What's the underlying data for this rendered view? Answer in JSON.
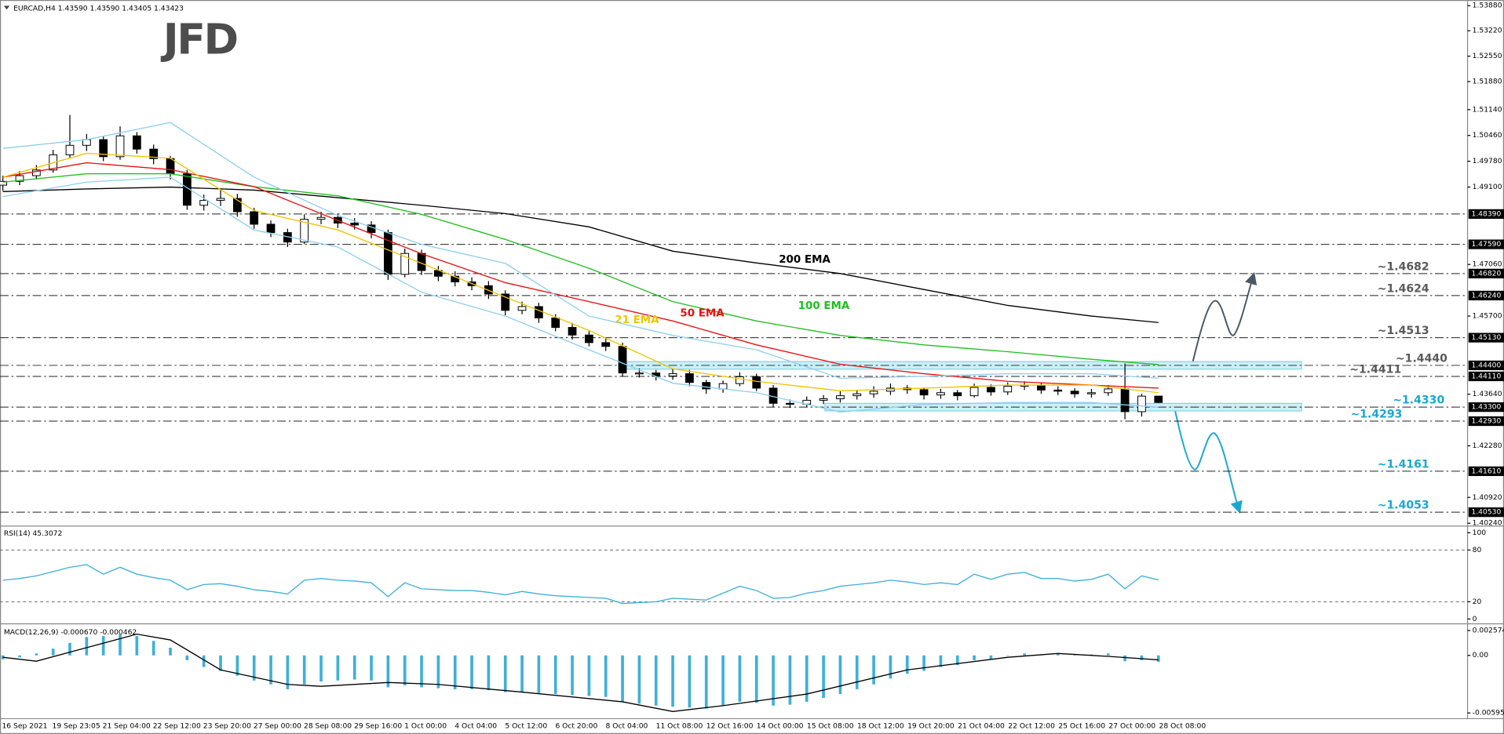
{
  "chart_data": [
    {
      "type": "candlestick",
      "title": "EURCAD,H4  1.43590 1.43590 1.43405 1.43423",
      "logo": "JFD",
      "up_color": "#ffffff",
      "down_color": "#000000",
      "open": [
        1.4915,
        1.4925,
        1.494,
        1.4955,
        1.4995,
        1.502,
        1.5035,
        1.499,
        1.5045,
        1.501,
        1.4985,
        1.4945,
        1.4862,
        1.4875,
        1.488,
        1.4845,
        1.4812,
        1.479,
        1.4765,
        1.4825,
        1.483,
        1.4815,
        1.481,
        1.479,
        1.468,
        1.4735,
        1.469,
        1.4675,
        1.466,
        1.465,
        1.4628,
        1.4585,
        1.4595,
        1.4565,
        1.454,
        1.452,
        1.45,
        1.449,
        1.442,
        1.442,
        1.4412,
        1.4418,
        1.4395,
        1.4378,
        1.4392,
        1.441,
        1.438,
        1.434,
        1.4338,
        1.4348,
        1.4352,
        1.436,
        1.4365,
        1.4372,
        1.438,
        1.4376,
        1.4362,
        1.4368,
        1.436,
        1.4382,
        1.437,
        1.4385,
        1.4388,
        1.4375,
        1.4372,
        1.4365,
        1.4368,
        1.4378,
        1.4318,
        1.4359
      ],
      "high": [
        1.494,
        1.4952,
        1.4968,
        1.5008,
        1.51,
        1.505,
        1.5045,
        1.507,
        1.5055,
        1.5022,
        1.4992,
        1.4955,
        1.489,
        1.4905,
        1.4892,
        1.4855,
        1.4822,
        1.48,
        1.4838,
        1.4845,
        1.484,
        1.4828,
        1.482,
        1.4798,
        1.4748,
        1.4745,
        1.4702,
        1.4688,
        1.4672,
        1.4662,
        1.4638,
        1.4608,
        1.4605,
        1.4575,
        1.4552,
        1.453,
        1.4512,
        1.45,
        1.4432,
        1.4428,
        1.443,
        1.4428,
        1.4402,
        1.44,
        1.4422,
        1.4418,
        1.4388,
        1.435,
        1.4358,
        1.4362,
        1.4372,
        1.4375,
        1.4385,
        1.4392,
        1.4388,
        1.4382,
        1.4378,
        1.4375,
        1.4392,
        1.439,
        1.4395,
        1.4398,
        1.4395,
        1.4385,
        1.438,
        1.4378,
        1.4388,
        1.4445,
        1.4365,
        1.4359
      ],
      "low": [
        1.49,
        1.4915,
        1.493,
        1.4948,
        1.4985,
        1.5005,
        1.4978,
        1.4982,
        1.4998,
        1.497,
        1.493,
        1.485,
        1.4848,
        1.486,
        1.4832,
        1.48,
        1.4778,
        1.4752,
        1.476,
        1.4812,
        1.4802,
        1.4798,
        1.4775,
        1.4665,
        1.4672,
        1.4678,
        1.4662,
        1.4648,
        1.4638,
        1.4615,
        1.4572,
        1.4575,
        1.4552,
        1.453,
        1.4508,
        1.449,
        1.4478,
        1.441,
        1.4408,
        1.44,
        1.4402,
        1.4385,
        1.4365,
        1.4368,
        1.4385,
        1.4372,
        1.433,
        1.4328,
        1.433,
        1.4338,
        1.4342,
        1.435,
        1.4355,
        1.4362,
        1.4365,
        1.435,
        1.4352,
        1.4348,
        1.4355,
        1.436,
        1.4362,
        1.4375,
        1.4365,
        1.4362,
        1.4355,
        1.4355,
        1.436,
        1.4298,
        1.4305,
        1.43405
      ],
      "close": [
        1.4925,
        1.494,
        1.4955,
        1.4995,
        1.502,
        1.5035,
        1.499,
        1.5045,
        1.501,
        1.4985,
        1.4945,
        1.4862,
        1.4875,
        1.488,
        1.4845,
        1.4812,
        1.479,
        1.4765,
        1.4825,
        1.483,
        1.4815,
        1.481,
        1.479,
        1.468,
        1.4735,
        1.469,
        1.4675,
        1.466,
        1.465,
        1.4628,
        1.4585,
        1.4595,
        1.4565,
        1.454,
        1.452,
        1.45,
        1.449,
        1.442,
        1.442,
        1.4412,
        1.4418,
        1.4395,
        1.4378,
        1.4392,
        1.441,
        1.438,
        1.434,
        1.4338,
        1.4348,
        1.4352,
        1.436,
        1.4365,
        1.4372,
        1.438,
        1.4376,
        1.4362,
        1.4368,
        1.436,
        1.4382,
        1.437,
        1.4385,
        1.4388,
        1.4375,
        1.4372,
        1.4365,
        1.4368,
        1.4378,
        1.4318,
        1.4359,
        1.43423
      ],
      "series": [
        {
          "name": "200 EMA",
          "color": "#000000",
          "x": [
            0,
            5,
            10,
            15,
            20,
            25,
            30,
            35,
            40,
            45,
            50,
            55,
            60,
            65,
            69
          ],
          "values": [
            1.4898,
            1.4905,
            1.491,
            1.4902,
            1.4882,
            1.4862,
            1.484,
            1.4805,
            1.4741,
            1.471,
            1.4682,
            1.464,
            1.4598,
            1.457,
            1.4553
          ]
        },
        {
          "name": "100 EMA",
          "color": "#1fbf1f",
          "x": [
            0,
            5,
            10,
            15,
            20,
            25,
            30,
            35,
            40,
            45,
            50,
            55,
            60,
            65,
            69
          ],
          "values": [
            1.4923,
            1.4945,
            1.4945,
            1.4911,
            1.4887,
            1.4838,
            1.4772,
            1.4696,
            1.4608,
            1.4557,
            1.4519,
            1.4494,
            1.4476,
            1.4456,
            1.4442
          ]
        },
        {
          "name": "50 EMA",
          "color": "#e81010",
          "x": [
            0,
            5,
            10,
            15,
            20,
            25,
            30,
            35,
            40,
            45,
            50,
            55,
            60,
            65,
            69
          ],
          "values": [
            1.4936,
            1.4974,
            1.4956,
            1.4911,
            1.4822,
            1.4734,
            1.4658,
            1.4608,
            1.4557,
            1.4494,
            1.4443,
            1.4418,
            1.4398,
            1.4388,
            1.438
          ]
        },
        {
          "name": "21 EMA",
          "color": "#f0c400",
          "x": [
            0,
            5,
            10,
            15,
            20,
            25,
            30,
            35,
            40,
            45,
            50,
            55,
            60,
            65,
            69
          ],
          "values": [
            1.4936,
            1.4999,
            1.4986,
            1.4848,
            1.4797,
            1.4709,
            1.462,
            1.4532,
            1.4431,
            1.4398,
            1.4373,
            1.438,
            1.4388,
            1.4388,
            1.4368
          ]
        },
        {
          "color": "#8fcfef",
          "x": [
            0,
            5,
            10,
            15,
            20,
            25,
            30,
            35,
            40,
            45,
            50,
            55,
            60,
            65,
            69
          ],
          "values": [
            1.5012,
            1.5035,
            1.508,
            1.4936,
            1.4835,
            1.4759,
            1.4709,
            1.457,
            1.4519,
            1.4481,
            1.4406,
            1.4411,
            1.4418,
            1.4418,
            1.4406
          ]
        },
        {
          "color": "#8fcfef",
          "x": [
            0,
            5,
            10,
            15,
            20,
            25,
            30,
            35,
            40,
            45,
            50,
            55,
            60,
            65,
            69
          ],
          "values": [
            1.4885,
            1.4923,
            1.4936,
            1.4797,
            1.4752,
            1.4633,
            1.457,
            1.4481,
            1.4393,
            1.4368,
            1.4317,
            1.4337,
            1.4342,
            1.4342,
            1.433
          ]
        }
      ],
      "ylim": [
        1.4019,
        1.5403
      ],
      "yticks": [
        {
          "value": 1.5388,
          "label": "1.53880"
        },
        {
          "value": 1.5322,
          "label": "1.53220"
        },
        {
          "value": 1.5255,
          "label": "1.52550"
        },
        {
          "value": 1.5188,
          "label": "1.51880"
        },
        {
          "value": 1.5114,
          "label": "1.51140"
        },
        {
          "value": 1.5046,
          "label": "1.50460"
        },
        {
          "value": 1.4978,
          "label": "1.49780"
        },
        {
          "value": 1.491,
          "label": "1.49100"
        },
        {
          "value": 1.4706,
          "label": "1.47060"
        },
        {
          "value": 1.457,
          "label": "1.45700"
        },
        {
          "value": 1.4364,
          "label": "1.43640"
        },
        {
          "value": 1.4228,
          "label": "1.42280"
        },
        {
          "value": 1.4092,
          "label": "1.40920"
        },
        {
          "value": 1.4024,
          "label": "1.40240"
        }
      ],
      "levels": [
        {
          "value": 1.4839,
          "label": "1.48390"
        },
        {
          "value": 1.4759,
          "label": "1.47590"
        },
        {
          "value": 1.4682,
          "label": "1.46820",
          "note": "~1.4682",
          "note_color": "#5a5a5a"
        },
        {
          "value": 1.4624,
          "label": "1.46240",
          "note": "~1.4624",
          "note_color": "#5a5a5a"
        },
        {
          "value": 1.4513,
          "label": "1.45130",
          "note": "~1.4513",
          "note_color": "#5a5a5a"
        },
        {
          "value": 1.444,
          "label": "1.44400",
          "note": "~1.4440",
          "note_color": "#5a5a5a",
          "zone": true
        },
        {
          "value": 1.4411,
          "label": "1.44110",
          "note": "~1.4411",
          "note_color": "#5a5a5a"
        },
        {
          "value": 1.433,
          "label": "1.43300",
          "note": "~1.4330",
          "note_color": "#19a7d1",
          "zone": true
        },
        {
          "value": 1.4293,
          "label": "1.42930",
          "note": "~1.4293",
          "note_color": "#19a7d1"
        },
        {
          "value": 1.4161,
          "label": "1.41610",
          "note": "~1.4161",
          "note_color": "#19a7d1"
        },
        {
          "value": 1.4053,
          "label": "1.40530",
          "note": "~1.4053",
          "note_color": "#19a7d1"
        }
      ]
    },
    {
      "type": "line",
      "title": "RSI(14) 45.3072",
      "series": [
        {
          "color": "#3fb0d8",
          "values": [
            45,
            47,
            50,
            55,
            60,
            63,
            52,
            60,
            52,
            48,
            45,
            34,
            40,
            41,
            38,
            34,
            32,
            29,
            45,
            47,
            45,
            44,
            42,
            26,
            42,
            35,
            34,
            33,
            33,
            31,
            28,
            32,
            29,
            27,
            26,
            25,
            24,
            18,
            19,
            20,
            24,
            23,
            22,
            30,
            38,
            33,
            24,
            25,
            30,
            33,
            38,
            40,
            42,
            45,
            43,
            40,
            42,
            40,
            52,
            46,
            52,
            54,
            47,
            47,
            44,
            46,
            52,
            35,
            50,
            45.3072
          ]
        }
      ],
      "ylim": [
        0,
        100
      ],
      "yticks": [
        0,
        20,
        80,
        100
      ],
      "levels": [
        20,
        80
      ]
    },
    {
      "type": "bar",
      "title": "MACD(12,26,9) -0.000670 -0.000462",
      "series": [
        {
          "type": "bar",
          "color": "#3fb0d8",
          "values": [
            -0.0004,
            -0.0002,
            0.0002,
            0.0007,
            0.0013,
            0.0019,
            0.002,
            0.0022,
            0.002,
            0.0015,
            0.0008,
            -0.0005,
            -0.0012,
            -0.0016,
            -0.0021,
            -0.0026,
            -0.003,
            -0.0035,
            -0.003,
            -0.0027,
            -0.0026,
            -0.0025,
            -0.0026,
            -0.0033,
            -0.0031,
            -0.0033,
            -0.0034,
            -0.0035,
            -0.0035,
            -0.0036,
            -0.0038,
            -0.0038,
            -0.0039,
            -0.004,
            -0.0041,
            -0.0042,
            -0.0043,
            -0.0048,
            -0.005,
            -0.0052,
            -0.0053,
            -0.0054,
            -0.0055,
            -0.0052,
            -0.0048,
            -0.0049,
            -0.0052,
            -0.0051,
            -0.0048,
            -0.0044,
            -0.004,
            -0.0035,
            -0.003,
            -0.0024,
            -0.0019,
            -0.0016,
            -0.0012,
            -0.001,
            -0.0005,
            -0.0004,
            0,
            0.0002,
            0.0001,
            0.0002,
            0.0001,
            0.0001,
            0.0002,
            -0.0006,
            -0.0005,
            -0.00067
          ]
        },
        {
          "type": "line",
          "color": "#000000",
          "x": [
            0,
            2,
            5,
            8,
            10,
            13,
            17,
            19,
            23,
            26,
            31,
            37,
            40,
            43,
            48,
            54,
            60,
            63,
            66,
            69
          ],
          "values": [
            -0.0002,
            -0.0006,
            0.0008,
            0.0022,
            0.0016,
            -0.0015,
            -0.003,
            -0.0032,
            -0.0028,
            -0.003,
            -0.0038,
            -0.0048,
            -0.0058,
            -0.0052,
            -0.004,
            -0.0015,
            -0.0002,
            0.0002,
            -0.0001,
            -0.000462
          ]
        }
      ],
      "ylim": [
        -0.005951,
        0.002574
      ],
      "yticks": [
        0.002574,
        {
          "value": 0,
          "label": "0.00"
        },
        -0.005951
      ],
      "x_labels": [
        "16 Sep 2021",
        "19 Sep 23:05",
        "21 Sep 04:00",
        "22 Sep 12:00",
        "23 Sep 20:00",
        "27 Sep 00:00",
        "28 Sep 08:00",
        "29 Sep 16:00",
        "1 Oct 00:00",
        "4 Oct 04:00",
        "5 Oct 12:00",
        "6 Oct 20:00",
        "8 Oct 04:00",
        "11 Oct 08:00",
        "12 Oct 16:00",
        "14 Oct 00:00",
        "15 Oct 08:00",
        "18 Oct 12:00",
        "19 Oct 20:00",
        "21 Oct 04:00",
        "22 Oct 12:00",
        "25 Oct 16:00",
        "27 Oct 00:00",
        "28 Oct 08:00"
      ]
    }
  ]
}
